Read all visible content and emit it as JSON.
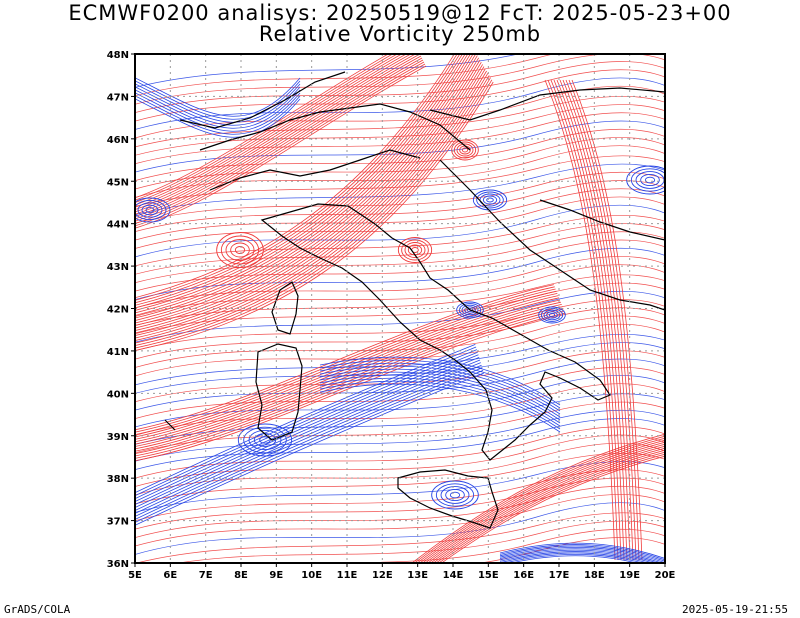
{
  "title_line1": "ECMWF0200 analisys: 20250519@12 FcT: 2025-05-23+00",
  "title_line2": "Relative Vorticity 250mb",
  "footer_left": "GrADS/COLA",
  "footer_right": "2025-05-19-21:55",
  "map": {
    "lon_range": [
      5,
      20
    ],
    "lat_range": [
      36,
      48
    ],
    "lon_labels": [
      "5E",
      "6E",
      "7E",
      "8E",
      "9E",
      "10E",
      "11E",
      "12E",
      "13E",
      "14E",
      "15E",
      "16E",
      "17E",
      "18E",
      "19E",
      "20E"
    ],
    "lat_labels": [
      "36N",
      "37N",
      "38N",
      "39N",
      "40N",
      "41N",
      "42N",
      "43N",
      "44N",
      "45N",
      "46N",
      "47N",
      "48N"
    ],
    "colors": {
      "positive_vorticity": "#f03c3c",
      "negative_vorticity": "#2846e6",
      "coastline": "#000000",
      "grid": "#9a9a9a"
    }
  }
}
